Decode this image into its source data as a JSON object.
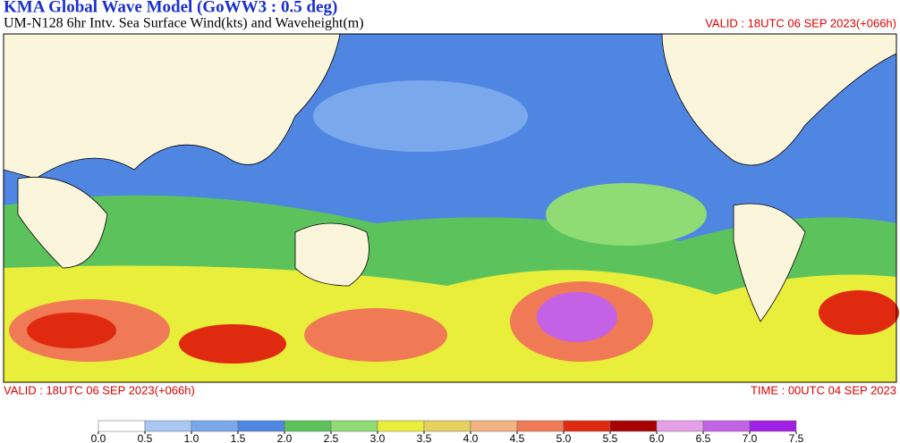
{
  "header": {
    "title": "KMA  Global Wave Model (GoWW3 : 0.5 deg)",
    "subtitle": "UM-N128  6hr Intv. Sea Surface Wind(kts) and Waveheight(m)",
    "valid": "VALID : 18UTC 06 SEP 2023(+066h)"
  },
  "footer": {
    "valid": "VALID : 18UTC 06 SEP 2023(+066h)",
    "time": "TIME : 00UTC 04 SEP 2023"
  },
  "legend": {
    "range": [
      0,
      7.5
    ],
    "ticks": [
      {
        "value": 0,
        "label": "0.0"
      },
      {
        "value": 0.5,
        "label": "0.5"
      },
      {
        "value": 1,
        "label": "1.0"
      },
      {
        "value": 1.5,
        "label": "1.5"
      },
      {
        "value": 2,
        "label": "2.0"
      },
      {
        "value": 2.5,
        "label": "2.5"
      },
      {
        "value": 3,
        "label": "3.0"
      },
      {
        "value": 3.5,
        "label": "3.5"
      },
      {
        "value": 4,
        "label": "4.0"
      },
      {
        "value": 4.5,
        "label": "4.5"
      },
      {
        "value": 5,
        "label": "5.0"
      },
      {
        "value": 5.5,
        "label": "5.5"
      },
      {
        "value": 6,
        "label": "6.0"
      },
      {
        "value": 6.5,
        "label": "6.5"
      },
      {
        "value": 7,
        "label": "7.0"
      },
      {
        "value": 7.5,
        "label": "7.5"
      }
    ],
    "colors": [
      "#ffffff",
      "#a9c9f2",
      "#7aa8ec",
      "#4f86e2",
      "#5cc35c",
      "#8fdc74",
      "#e8ee3a",
      "#e6d060",
      "#f3b282",
      "#f07a55",
      "#e02a10",
      "#a80000",
      "#e6a0e8",
      "#c462e6",
      "#a020e6"
    ]
  }
}
